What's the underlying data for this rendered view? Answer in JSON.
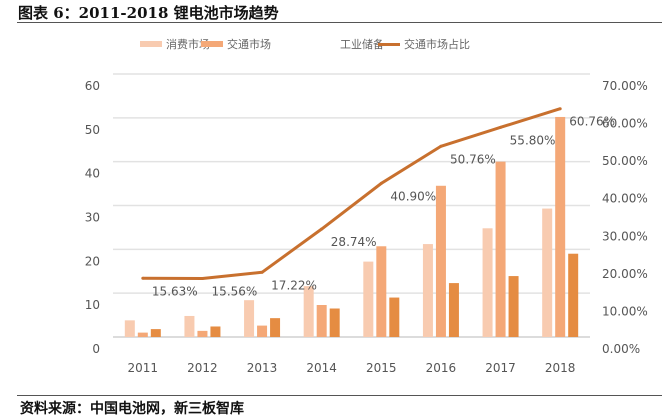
{
  "title": "图表 6：2011-2018 锂电池市场趋势",
  "source": "资料来源：中国电池网，新三板智库",
  "chart_data": {
    "type": "bar",
    "categories": [
      "2011",
      "2012",
      "2013",
      "2014",
      "2015",
      "2016",
      "2017",
      "2018"
    ],
    "series": [
      {
        "name": "消费市场",
        "type": "bar",
        "axis": "left",
        "color": "#F8CBB0",
        "values": [
          3.8,
          4.8,
          8.4,
          11.6,
          17.2,
          21.2,
          24.8,
          29.3
        ]
      },
      {
        "name": "交通市场",
        "type": "bar",
        "axis": "left",
        "color": "#F4A877",
        "values": [
          1.0,
          1.4,
          2.6,
          7.3,
          20.7,
          34.5,
          40.0,
          50.2
        ]
      },
      {
        "name": "工业储备",
        "type": "bar",
        "axis": "left",
        "color": "#E58C42",
        "values": [
          1.8,
          2.4,
          4.3,
          6.5,
          9.0,
          12.3,
          13.9,
          19.0
        ]
      },
      {
        "name": "交通市场占比",
        "type": "line",
        "axis": "right",
        "color": "#C8702E",
        "values": [
          15.63,
          15.56,
          17.22,
          28.74,
          40.9,
          50.76,
          55.8,
          60.76
        ],
        "labels": [
          "15.63%",
          "15.56%",
          "17.22%",
          "28.74%",
          "40.90%",
          "50.76%",
          "55.80%",
          "60.76%"
        ]
      }
    ],
    "legend_swatch_colors": {
      "工业储备": "#FFFFFF"
    },
    "y_left": {
      "lim": [
        0,
        60
      ],
      "ticks": [
        "0",
        "10",
        "20",
        "30",
        "40",
        "50",
        "60"
      ]
    },
    "y_right": {
      "lim": [
        0,
        70
      ],
      "ticks": [
        "0.00%",
        "10.00%",
        "20.00%",
        "30.00%",
        "40.00%",
        "50.00%",
        "60.00%",
        "70.00%"
      ]
    },
    "grid": true,
    "legend_position": "top"
  }
}
